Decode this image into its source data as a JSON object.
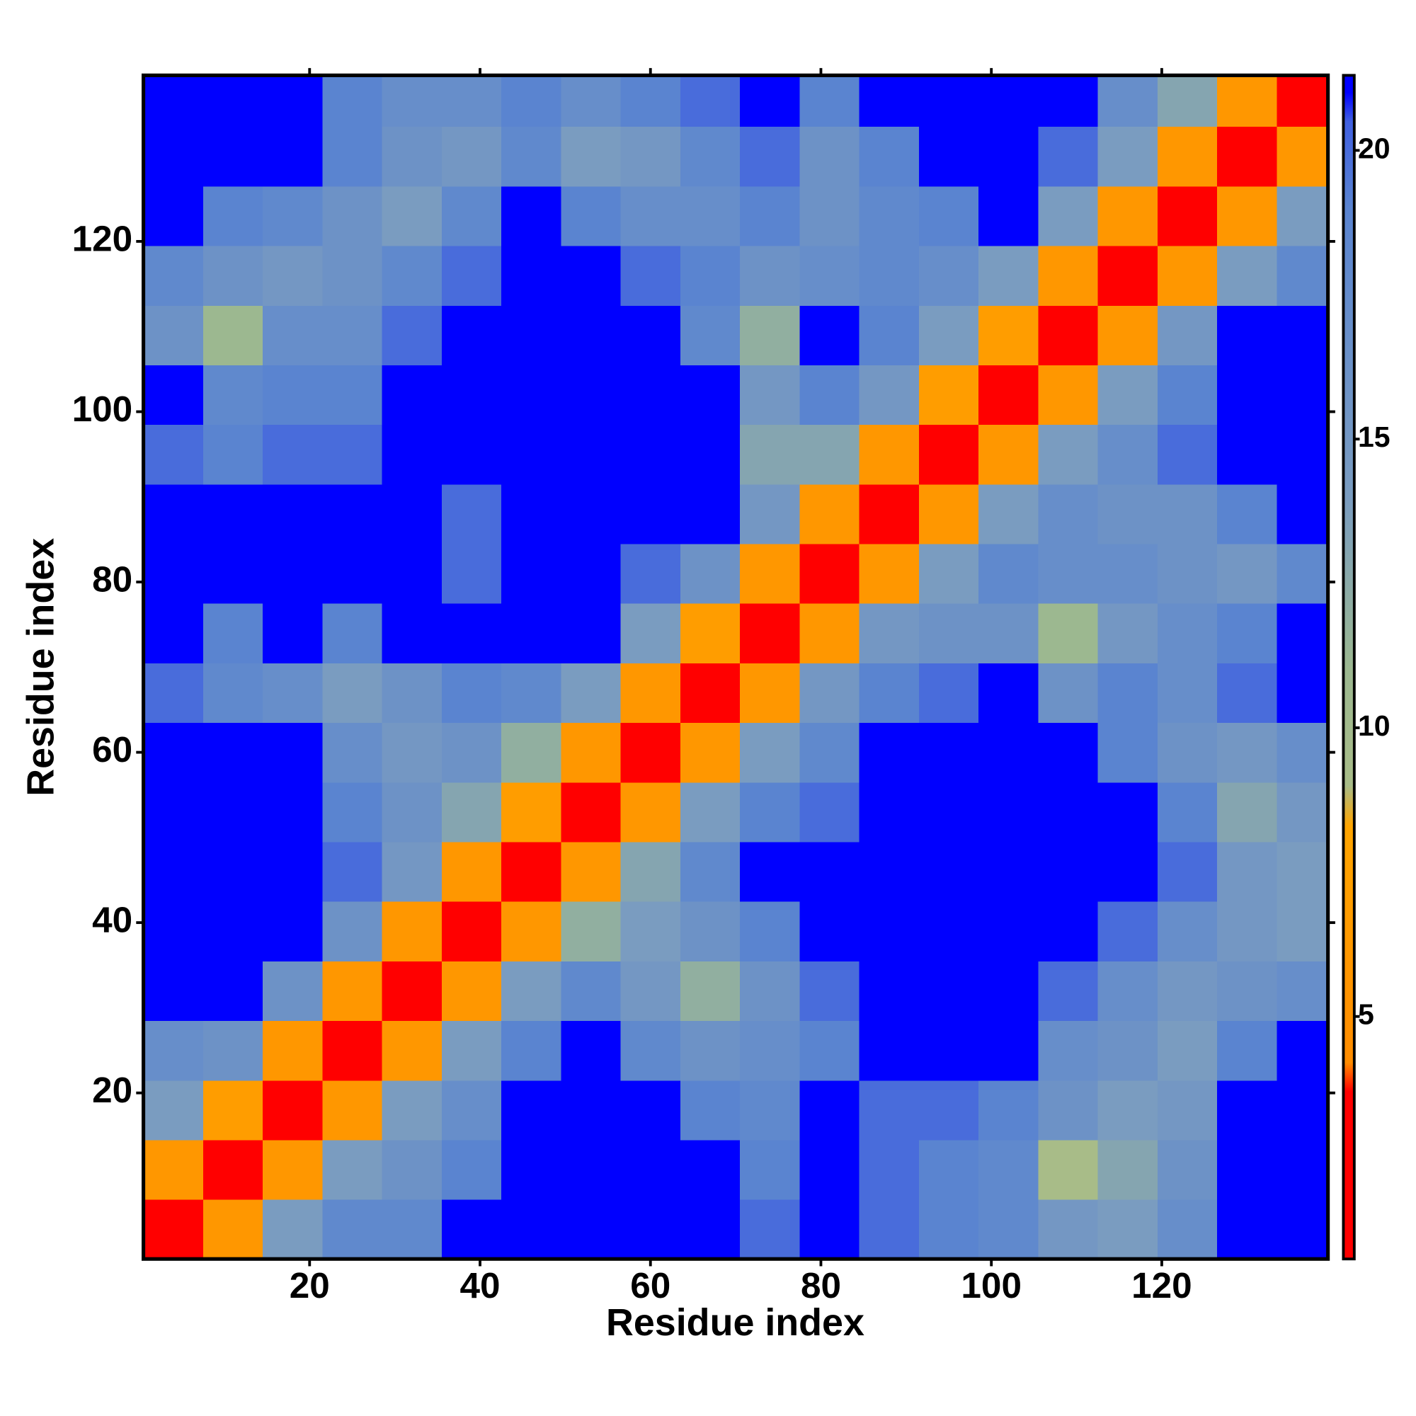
{
  "chart_data": {
    "type": "heatmap",
    "xlabel": "Residue index",
    "ylabel": "Residue index",
    "x": [
      4,
      11,
      18,
      25,
      32,
      39,
      46,
      53,
      60,
      67,
      74,
      81,
      88,
      95,
      102,
      109,
      116,
      123,
      130,
      137
    ],
    "y": [
      4,
      11,
      18,
      25,
      32,
      39,
      46,
      53,
      60,
      67,
      74,
      81,
      88,
      95,
      102,
      109,
      116,
      123,
      130,
      137
    ],
    "z": [
      [
        2,
        6,
        14,
        18,
        18,
        21,
        21,
        21,
        21,
        21,
        20,
        21,
        20,
        19,
        18,
        15,
        14,
        17,
        21,
        21
      ],
      [
        6,
        2,
        6,
        14,
        16,
        19,
        21,
        21,
        21,
        21,
        19,
        21,
        20,
        19,
        18,
        9,
        13,
        16,
        21,
        21
      ],
      [
        14,
        7,
        2,
        6,
        14,
        17,
        21,
        21,
        21,
        19,
        18,
        21,
        20,
        20,
        19,
        16,
        14,
        15,
        21,
        21
      ],
      [
        17,
        16,
        6,
        2,
        6,
        14,
        19,
        21,
        18,
        16,
        17,
        19,
        21,
        21,
        21,
        17,
        16,
        14,
        19,
        21
      ],
      [
        21,
        21,
        16,
        6,
        2,
        6,
        14,
        18,
        15,
        12,
        16,
        20,
        21,
        21,
        21,
        20,
        17,
        15,
        16,
        17
      ],
      [
        21,
        21,
        21,
        16,
        6,
        2,
        6,
        12,
        14,
        16,
        19,
        21,
        21,
        21,
        21,
        21,
        20,
        17,
        15,
        14
      ],
      [
        21,
        21,
        21,
        20,
        15,
        6,
        2,
        6,
        13,
        18,
        21,
        21,
        21,
        21,
        21,
        21,
        21,
        20,
        15,
        14
      ],
      [
        21,
        21,
        21,
        19,
        16,
        13,
        7,
        2,
        6,
        14,
        19,
        20,
        21,
        21,
        21,
        21,
        21,
        19,
        13,
        15
      ],
      [
        21,
        21,
        21,
        17,
        15,
        16,
        12,
        6,
        2,
        6,
        14,
        18,
        21,
        21,
        21,
        21,
        19,
        16,
        15,
        17
      ],
      [
        20,
        18,
        17,
        14,
        16,
        19,
        18,
        14,
        6,
        2,
        6,
        15,
        19,
        20,
        21,
        16,
        19,
        17,
        20,
        21
      ],
      [
        21,
        19,
        21,
        19,
        21,
        21,
        21,
        21,
        14,
        7,
        2,
        6,
        15,
        16,
        16,
        11,
        15,
        17,
        19,
        21
      ],
      [
        21,
        21,
        21,
        21,
        21,
        20,
        21,
        21,
        20,
        16,
        6,
        2,
        6,
        14,
        18,
        17,
        17,
        16,
        15,
        18
      ],
      [
        21,
        21,
        21,
        21,
        21,
        20,
        21,
        21,
        21,
        21,
        15,
        6,
        2,
        6,
        14,
        17,
        16,
        16,
        19,
        21
      ],
      [
        20,
        19,
        20,
        20,
        21,
        21,
        21,
        21,
        21,
        21,
        13,
        13,
        6,
        2,
        6,
        14,
        17,
        20,
        21,
        21
      ],
      [
        21,
        18,
        19,
        19,
        21,
        21,
        21,
        21,
        21,
        21,
        15,
        19,
        15,
        7,
        2,
        6,
        14,
        19,
        21,
        21
      ],
      [
        16,
        11,
        17,
        17,
        20,
        21,
        21,
        21,
        21,
        18,
        12,
        21,
        19,
        14,
        7,
        2,
        6,
        15,
        21,
        21
      ],
      [
        18,
        16,
        15,
        16,
        18,
        20,
        21,
        21,
        20,
        19,
        16,
        17,
        18,
        17,
        14,
        6,
        2,
        6,
        14,
        18
      ],
      [
        21,
        19,
        18,
        16,
        14,
        18,
        21,
        19,
        17,
        17,
        19,
        16,
        18,
        19,
        21,
        14,
        6,
        2,
        6,
        14
      ],
      [
        21,
        21,
        21,
        19,
        16,
        15,
        18,
        14,
        15,
        18,
        20,
        16,
        19,
        21,
        21,
        20,
        14,
        6,
        2,
        6
      ],
      [
        21,
        21,
        21,
        19,
        17,
        17,
        19,
        17,
        19,
        20,
        21,
        19,
        21,
        21,
        21,
        21,
        17,
        13,
        6,
        2
      ]
    ],
    "cell_size": 7,
    "xlim": [
      0.5,
      139.5
    ],
    "ylim": [
      0.5,
      139.5
    ],
    "xticks": [
      20,
      40,
      60,
      80,
      100,
      120
    ],
    "yticks": [
      20,
      40,
      60,
      80,
      100,
      120
    ],
    "zlim": [
      0.8,
      21.3
    ],
    "zticks": [
      5,
      10,
      15,
      20
    ],
    "colorscale": [
      [
        0.8,
        "#ff0000"
      ],
      [
        3.7,
        "#ff0000"
      ],
      [
        4.2,
        "#ff8c00"
      ],
      [
        8.3,
        "#ffa500"
      ],
      [
        9,
        "#a8bc88"
      ],
      [
        11,
        "#9cb890"
      ],
      [
        14,
        "#7a9cc0"
      ],
      [
        19,
        "#5a84d0"
      ],
      [
        20.5,
        "#4060e0"
      ],
      [
        21,
        "#0000ff"
      ],
      [
        21.3,
        "#0000ff"
      ]
    ]
  }
}
